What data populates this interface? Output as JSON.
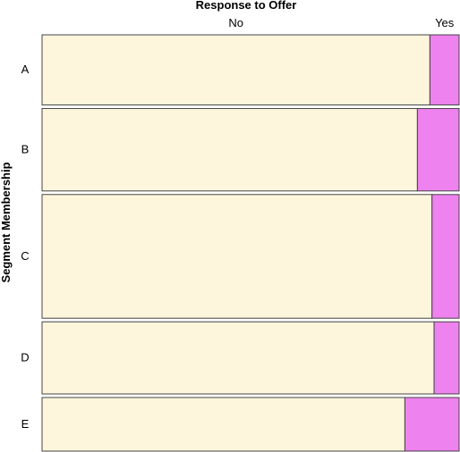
{
  "chart_data": {
    "type": "mosaic",
    "title": "Response to Offer",
    "xlabel": "",
    "ylabel": "Segment Membership",
    "column_categories": [
      "No",
      "Yes"
    ],
    "rows": [
      {
        "label": "A",
        "share": 0.17,
        "values": {
          "No": 0.93,
          "Yes": 0.07
        }
      },
      {
        "label": "B",
        "share": 0.2,
        "values": {
          "No": 0.9,
          "Yes": 0.1
        }
      },
      {
        "label": "C",
        "share": 0.3,
        "values": {
          "No": 0.935,
          "Yes": 0.065
        }
      },
      {
        "label": "D",
        "share": 0.175,
        "values": {
          "No": 0.94,
          "Yes": 0.06
        }
      },
      {
        "label": "E",
        "share": 0.13,
        "values": {
          "No": 0.87,
          "Yes": 0.13
        }
      }
    ],
    "colors": {
      "No": "#fef6dc",
      "Yes": "#ee82ee"
    },
    "edge_color": "#444444"
  }
}
